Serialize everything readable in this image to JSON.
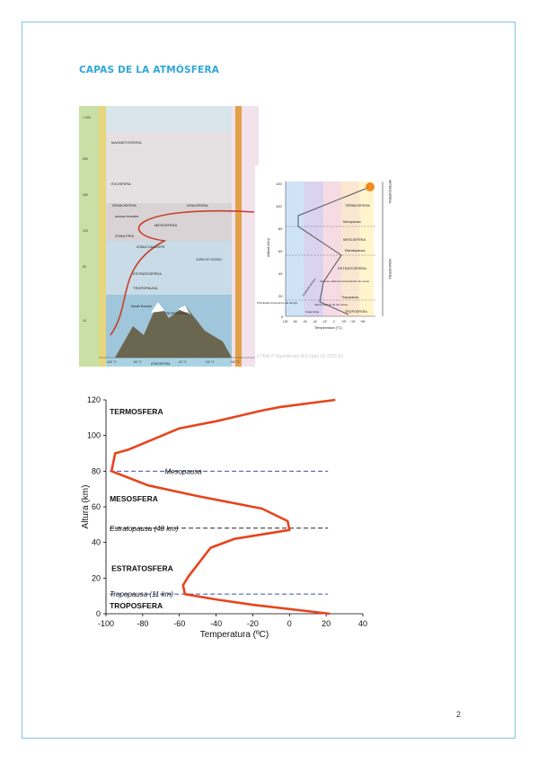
{
  "document": {
    "title": "CAPAS DE LA ATMÓSFERA",
    "page_number": "2"
  },
  "figure_left": {
    "layers": [
      "MAGNETOSFERA",
      "EXOSFERA",
      "TERMOSFERA",
      "IONOSFERA",
      "MESOSFERA",
      "ZONA FRIA",
      "ZONA CALIENTE",
      "ESTRATOSFERA",
      "TROPOPAUSA",
      "TROPOSFERA"
    ],
    "notes": [
      "CAPA DE OZONO",
      "Monte Everest",
      "auroras boreales",
      "ATMOSFERA"
    ],
    "temps": [
      "-100 °C",
      "-60 °C",
      "-20 °C",
      "+20 °C",
      "+60 °C"
    ],
    "altitude_ticks": [
      "1 000",
      "500",
      "300",
      "100",
      "50",
      "10"
    ],
    "colors": {
      "sky": "#9fcfe3",
      "strip": "#d9c979",
      "band": "#e3a14a",
      "curve": "#c7402d"
    }
  },
  "figure_right": {
    "ylabel": "Altitud (Km)",
    "xlabel": "Temperatura (°C)",
    "yticks": [
      "120",
      "100",
      "80",
      "60",
      "40",
      "20",
      "0"
    ],
    "xticks": [
      "-100",
      "-80",
      "-60",
      "-40",
      "-20",
      "0",
      "+20",
      "+40",
      "+60"
    ],
    "labels": [
      "TERMOSFERA",
      "Mesopausa",
      "MESOSFERA",
      "Estratopausa",
      "ESTRATOSFERA",
      "Zona de máxima concentración de ozono",
      "Tropopausa",
      "Altura máxima de las nubes",
      "TROPOSFERA",
      "Principales fenómenos del tiempo",
      "Capa límite",
      "Gradiente térmico"
    ],
    "side_labels": [
      "HETEROSFERA",
      "HOMOSFERA"
    ],
    "watermark": "CTMA 2º Bachillerato IES Llgio VII 2022-23"
  },
  "chart_data": {
    "type": "line",
    "xlabel": "Temperatura (ºC)",
    "ylabel": "Altura (km)",
    "xlim": [
      -100,
      40
    ],
    "ylim": [
      0,
      120
    ],
    "xticks": [
      -100,
      -80,
      -60,
      -40,
      -20,
      0,
      20,
      40
    ],
    "yticks": [
      0,
      20,
      40,
      60,
      80,
      100,
      120
    ],
    "series": [
      {
        "x": [
          22,
          -20,
          -40,
          -57,
          -58,
          -55,
          -43,
          -30,
          0,
          -1,
          -15,
          -50,
          -77,
          -97,
          -95,
          -88,
          -60,
          -40,
          -15,
          -5,
          25
        ],
        "y": [
          0,
          5,
          8,
          11,
          16,
          21,
          37,
          42,
          47,
          52,
          59,
          66,
          72,
          80,
          90,
          92,
          104,
          108,
          114,
          116,
          120
        ]
      }
    ],
    "reference_lines": [
      {
        "y": 80,
        "label": "Mesopausa",
        "color": "#3f4fa8"
      },
      {
        "y": 48,
        "label": "Estratopausa (48 km)",
        "color": "#222222"
      },
      {
        "y": 11,
        "label": "Tropopausa (11 km)",
        "color": "#3f4fa8"
      }
    ],
    "layer_labels": [
      {
        "text": "TERMOSFERA",
        "x": -98,
        "y": 112
      },
      {
        "text": "MESOSFERA",
        "x": -98,
        "y": 63
      },
      {
        "text": "ESTRATOSFERA",
        "x": -97,
        "y": 24
      },
      {
        "text": "TROPOSFERA",
        "x": -98,
        "y": 3
      }
    ],
    "line_color": "#e8441d",
    "grid": false
  }
}
